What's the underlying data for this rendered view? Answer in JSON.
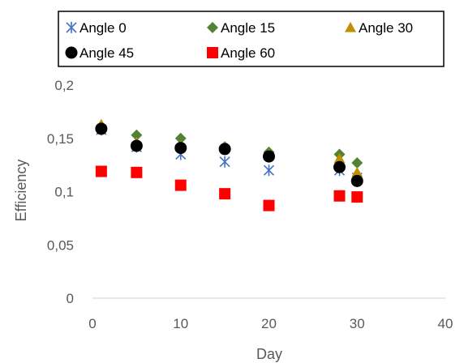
{
  "chart_data": {
    "type": "scatter",
    "xlabel": "Day",
    "ylabel": "Efficiency",
    "xlim": [
      0,
      40
    ],
    "ylim": [
      0,
      0.2
    ],
    "x_ticks": [
      "0",
      "10",
      "20",
      "30",
      "40"
    ],
    "y_ticks": [
      "0",
      "0,05",
      "0,1",
      "0,15",
      "0,2"
    ],
    "grid": false,
    "legend_position": "top",
    "series": [
      {
        "name": "Angle 0",
        "marker": "asterisk",
        "color": "#4472C4",
        "x": [
          1,
          5,
          10,
          15,
          20,
          28,
          30
        ],
        "y": [
          0.158,
          0.142,
          0.135,
          0.128,
          0.12,
          0.12,
          0.113
        ]
      },
      {
        "name": "Angle 15",
        "marker": "diamond",
        "color": "#548235",
        "x": [
          1,
          5,
          10,
          15,
          20,
          28,
          30
        ],
        "y": [
          0.161,
          0.153,
          0.15,
          0.142,
          0.137,
          0.135,
          0.127
        ]
      },
      {
        "name": "Angle 30",
        "marker": "triangle",
        "color": "#BF9000",
        "x": [
          1,
          5,
          10,
          15,
          20,
          28,
          30
        ],
        "y": [
          0.163,
          0.146,
          0.143,
          0.142,
          0.135,
          0.131,
          0.118
        ]
      },
      {
        "name": "Angle 45",
        "marker": "circle",
        "color": "#000000",
        "x": [
          1,
          5,
          10,
          15,
          20,
          28,
          30
        ],
        "y": [
          0.159,
          0.143,
          0.141,
          0.14,
          0.133,
          0.123,
          0.11
        ]
      },
      {
        "name": "Angle 60",
        "marker": "square",
        "color": "#FF0000",
        "x": [
          1,
          5,
          10,
          15,
          20,
          28,
          30
        ],
        "y": [
          0.119,
          0.118,
          0.106,
          0.098,
          0.087,
          0.096,
          0.095
        ]
      }
    ]
  }
}
